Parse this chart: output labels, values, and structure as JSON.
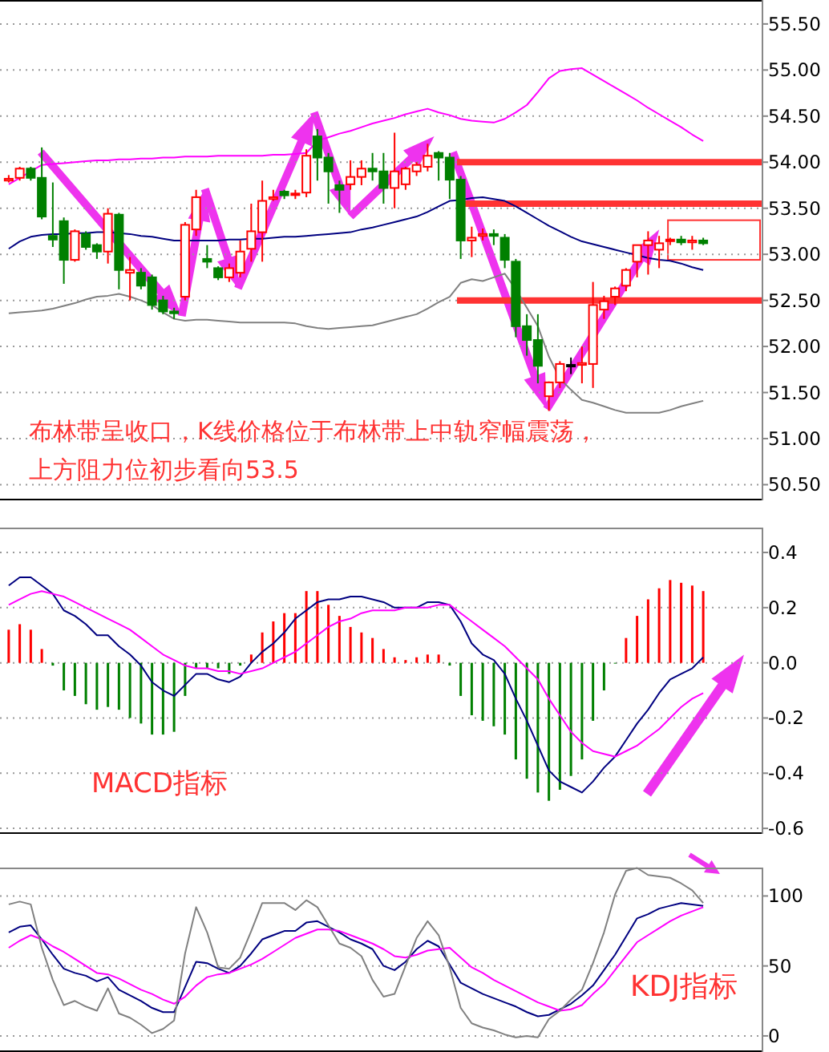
{
  "chart_data": [
    {
      "type": "candlestick",
      "categories": [
        null,
        null,
        null,
        null,
        null,
        null,
        null,
        null,
        null,
        null,
        null,
        null,
        null,
        null,
        null,
        null,
        null,
        null,
        null,
        null,
        null,
        null,
        null,
        null,
        null,
        null,
        null,
        null,
        null,
        null,
        null,
        null,
        null,
        null,
        null,
        null,
        null,
        null,
        null,
        null,
        null,
        null,
        null,
        null,
        null,
        null,
        null,
        null,
        null,
        null,
        null,
        null,
        null,
        null,
        null,
        null,
        null,
        null,
        null,
        null,
        null,
        null,
        null,
        null
      ],
      "ohlc": [
        [
          53.8,
          53.86,
          53.78,
          53.82
        ],
        [
          53.83,
          53.95,
          53.8,
          53.93
        ],
        [
          53.93,
          53.95,
          53.8,
          53.83
        ],
        [
          53.83,
          54.16,
          53.38,
          53.41
        ],
        [
          53.2,
          53.78,
          53.08,
          53.16
        ],
        [
          53.36,
          53.4,
          52.68,
          52.94
        ],
        [
          52.94,
          53.27,
          52.92,
          53.25
        ],
        [
          53.22,
          53.25,
          53.05,
          53.08
        ],
        [
          53.1,
          53.12,
          52.95,
          53.03
        ],
        [
          53.03,
          53.5,
          52.9,
          53.44
        ],
        [
          53.43,
          53.45,
          52.62,
          52.83
        ],
        [
          52.8,
          52.97,
          52.5,
          52.83
        ],
        [
          52.8,
          52.85,
          52.62,
          52.66
        ],
        [
          52.75,
          52.78,
          52.4,
          52.45
        ],
        [
          52.5,
          52.55,
          52.35,
          52.38
        ],
        [
          52.38,
          52.42,
          52.3,
          52.36
        ],
        [
          52.54,
          53.35,
          52.5,
          53.32
        ],
        [
          53.27,
          53.7,
          53.2,
          53.62
        ],
        [
          52.95,
          53.1,
          52.85,
          52.92
        ],
        [
          52.85,
          52.87,
          52.72,
          52.75
        ],
        [
          52.75,
          52.9,
          52.7,
          52.85
        ],
        [
          52.8,
          53.15,
          52.75,
          53.03
        ],
        [
          53.06,
          53.55,
          52.92,
          53.25
        ],
        [
          53.24,
          53.8,
          52.92,
          53.58
        ],
        [
          53.6,
          53.7,
          53.58,
          53.62
        ],
        [
          53.68,
          53.7,
          53.6,
          53.64
        ],
        [
          53.65,
          53.7,
          53.6,
          53.66
        ],
        [
          53.67,
          54.14,
          53.62,
          54.07
        ],
        [
          54.28,
          54.36,
          53.8,
          54.05
        ],
        [
          54.05,
          54.1,
          53.55,
          53.9
        ],
        [
          53.75,
          53.8,
          53.45,
          53.7
        ],
        [
          53.76,
          54.02,
          53.7,
          53.84
        ],
        [
          53.84,
          54.02,
          53.75,
          53.93
        ],
        [
          53.93,
          54.1,
          53.8,
          53.9
        ],
        [
          53.9,
          54.1,
          53.55,
          53.72
        ],
        [
          53.72,
          54.32,
          53.5,
          53.9
        ],
        [
          53.76,
          53.95,
          53.7,
          53.93
        ],
        [
          53.9,
          54.0,
          53.85,
          53.97
        ],
        [
          53.95,
          54.2,
          53.9,
          54.07
        ],
        [
          54.1,
          54.12,
          53.8,
          54.05
        ],
        [
          54.05,
          54.1,
          53.6,
          53.81
        ],
        [
          53.81,
          53.85,
          52.95,
          53.15
        ],
        [
          53.15,
          53.3,
          52.97,
          53.18
        ],
        [
          53.2,
          53.28,
          53.15,
          53.22
        ],
        [
          53.22,
          53.27,
          53.1,
          53.2
        ],
        [
          53.18,
          53.22,
          52.85,
          52.94
        ],
        [
          52.92,
          52.95,
          52.1,
          52.22
        ],
        [
          52.22,
          52.35,
          51.9,
          52.07
        ],
        [
          52.07,
          52.35,
          51.6,
          51.79
        ],
        [
          51.46,
          51.62,
          51.3,
          51.61
        ],
        [
          51.61,
          51.84,
          51.55,
          51.81
        ],
        [
          51.8,
          51.88,
          51.7,
          51.8
        ],
        [
          51.8,
          52.0,
          51.6,
          51.82
        ],
        [
          51.81,
          52.7,
          51.55,
          52.45
        ],
        [
          52.4,
          52.55,
          52.3,
          52.49
        ],
        [
          52.54,
          52.65,
          52.45,
          52.63
        ],
        [
          52.66,
          52.85,
          52.6,
          52.83
        ],
        [
          52.92,
          53.1,
          52.75,
          53.1
        ],
        [
          53.1,
          53.25,
          52.78,
          53.15
        ],
        [
          53.05,
          53.2,
          52.85,
          53.12
        ],
        [
          53.15,
          53.18,
          53.1,
          53.16
        ],
        [
          53.16,
          53.2,
          53.1,
          53.13
        ],
        [
          53.13,
          53.2,
          53.05,
          53.15
        ],
        [
          53.15,
          53.18,
          53.1,
          53.12
        ]
      ],
      "series": [
        {
          "type": "line",
          "color": "#ff00ff",
          "values": [
            53.76,
            53.83,
            53.9,
            53.97,
            53.98,
            53.99,
            54.0,
            54.01,
            54.02,
            54.02,
            54.03,
            54.03,
            54.04,
            54.04,
            54.05,
            54.05,
            54.06,
            54.06,
            54.06,
            54.07,
            54.07,
            54.07,
            54.07,
            54.07,
            54.08,
            54.08,
            54.09,
            54.1,
            54.23,
            54.27,
            54.31,
            54.34,
            54.38,
            54.42,
            54.45,
            54.48,
            54.52,
            54.55,
            54.58,
            54.54,
            54.51,
            54.47,
            54.45,
            54.44,
            54.43,
            54.47,
            54.54,
            54.62,
            54.76,
            54.91,
            54.99,
            55.01,
            55.02,
            54.95,
            54.88,
            54.81,
            54.74,
            54.67,
            54.59,
            54.52,
            54.45,
            54.38,
            54.3,
            54.23
          ]
        },
        {
          "type": "line",
          "color": "#000080",
          "values": [
            53.06,
            53.14,
            53.19,
            53.21,
            53.22,
            53.22,
            53.23,
            53.23,
            53.24,
            53.24,
            53.23,
            53.22,
            53.2,
            53.19,
            53.17,
            53.15,
            53.15,
            53.15,
            53.15,
            53.15,
            53.16,
            53.16,
            53.17,
            53.17,
            53.18,
            53.19,
            53.19,
            53.2,
            53.21,
            53.22,
            53.23,
            53.24,
            53.27,
            53.29,
            53.32,
            53.35,
            53.38,
            53.41,
            53.46,
            53.52,
            53.58,
            53.59,
            53.61,
            53.62,
            53.6,
            53.58,
            53.52,
            53.45,
            53.38,
            53.31,
            53.25,
            53.19,
            53.14,
            53.11,
            53.08,
            53.05,
            53.02,
            52.99,
            52.96,
            52.94,
            52.93,
            52.9,
            52.86,
            52.83
          ]
        },
        {
          "type": "line",
          "color": "#808080",
          "values": [
            52.36,
            52.37,
            52.38,
            52.39,
            52.41,
            52.44,
            52.47,
            52.51,
            52.54,
            52.55,
            52.57,
            52.54,
            52.5,
            52.45,
            52.37,
            52.3,
            52.28,
            52.29,
            52.29,
            52.28,
            52.27,
            52.26,
            52.26,
            52.26,
            52.26,
            52.26,
            52.25,
            52.22,
            52.2,
            52.19,
            52.2,
            52.21,
            52.22,
            52.23,
            52.26,
            52.29,
            52.32,
            52.35,
            52.41,
            52.48,
            52.54,
            52.69,
            52.73,
            52.71,
            52.75,
            52.79,
            52.62,
            52.42,
            52.22,
            51.89,
            51.65,
            51.53,
            51.42,
            51.39,
            51.35,
            51.31,
            51.28,
            51.28,
            51.28,
            51.28,
            51.31,
            51.35,
            51.38,
            51.41
          ]
        }
      ],
      "ylim": [
        50.33,
        55.76
      ],
      "yticks": [
        {
          "value": 50.5,
          "label": "50.50"
        },
        {
          "value": 51,
          "label": "51.00"
        },
        {
          "value": 51.5,
          "label": "51.50"
        },
        {
          "value": 52,
          "label": "52.00"
        },
        {
          "value": 52.5,
          "label": "52.50"
        },
        {
          "value": 53,
          "label": "53.00"
        },
        {
          "value": 53.5,
          "label": "53.50"
        },
        {
          "value": 54,
          "label": "54.00"
        },
        {
          "value": 54.5,
          "label": "54.50"
        },
        {
          "value": 55,
          "label": "55.00"
        },
        {
          "value": 55.5,
          "label": "55.50"
        }
      ],
      "grid": "y",
      "ref_lines": [
        {
          "axis": "y",
          "value": 54.0,
          "color": "#ff3333"
        },
        {
          "axis": "y",
          "value": 53.55,
          "color": "#ff3333"
        },
        {
          "axis": "y",
          "value": 52.5,
          "color": "#ff3333"
        }
      ],
      "annotations": [
        "布林带呈收口，K线价格位于布林带上中轨窄幅震荡，",
        "上方阻力位初步看向53.5"
      ]
    },
    {
      "type": "bar",
      "categories": [
        null,
        null,
        null,
        null,
        null,
        null,
        null,
        null,
        null,
        null,
        null,
        null,
        null,
        null,
        null,
        null,
        null,
        null,
        null,
        null,
        null,
        null,
        null,
        null,
        null,
        null,
        null,
        null,
        null,
        null,
        null,
        null,
        null,
        null,
        null,
        null,
        null,
        null,
        null,
        null,
        null,
        null,
        null,
        null,
        null,
        null,
        null,
        null,
        null,
        null,
        null,
        null,
        null,
        null,
        null,
        null,
        null,
        null,
        null,
        null,
        null,
        null,
        null,
        null
      ],
      "series": [
        {
          "type": "bar",
          "values": [
            0.12,
            0.14,
            0.12,
            0.05,
            -0.01,
            -0.1,
            -0.12,
            -0.15,
            -0.17,
            -0.16,
            -0.17,
            -0.2,
            -0.22,
            -0.26,
            -0.26,
            -0.25,
            -0.12,
            -0.02,
            -0.02,
            -0.02,
            -0.04,
            -0.01,
            0.03,
            0.11,
            0.15,
            0.18,
            0.18,
            0.26,
            0.26,
            0.21,
            0.17,
            0.13,
            0.11,
            0.09,
            0.05,
            0.02,
            0.01,
            0.02,
            0.03,
            0.03,
            -0.01,
            -0.12,
            -0.19,
            -0.21,
            -0.23,
            -0.26,
            -0.35,
            -0.42,
            -0.47,
            -0.5,
            -0.46,
            -0.41,
            -0.35,
            -0.21,
            -0.1,
            0.0,
            0.09,
            0.17,
            0.23,
            0.27,
            0.3,
            0.29,
            0.28,
            0.26
          ],
          "colors": [
            "#ff0000",
            "#ff0000",
            "#ff0000",
            "#ff0000",
            "#008000",
            "#008000",
            "#008000",
            "#008000",
            "#008000",
            "#008000",
            "#008000",
            "#008000",
            "#008000",
            "#008000",
            "#008000",
            "#008000",
            "#008000",
            "#008000",
            "#008000",
            "#008000",
            "#008000",
            "#008000",
            "#ff0000",
            "#ff0000",
            "#ff0000",
            "#ff0000",
            "#ff0000",
            "#ff0000",
            "#ff0000",
            "#ff0000",
            "#ff0000",
            "#ff0000",
            "#ff0000",
            "#ff0000",
            "#ff0000",
            "#ff0000",
            "#ff0000",
            "#ff0000",
            "#ff0000",
            "#ff0000",
            "#008000",
            "#008000",
            "#008000",
            "#008000",
            "#008000",
            "#008000",
            "#008000",
            "#008000",
            "#008000",
            "#008000",
            "#008000",
            "#008000",
            "#008000",
            "#008000",
            "#008000",
            "#008000",
            "#ff0000",
            "#ff0000",
            "#ff0000",
            "#ff0000",
            "#ff0000",
            "#ff0000",
            "#ff0000",
            "#ff0000"
          ]
        },
        {
          "type": "line",
          "color": "#000080",
          "values": [
            0.28,
            0.31,
            0.31,
            0.28,
            0.25,
            0.19,
            0.17,
            0.14,
            0.1,
            0.1,
            0.06,
            0.03,
            -0.01,
            -0.07,
            -0.1,
            -0.12,
            -0.08,
            -0.04,
            -0.04,
            -0.06,
            -0.07,
            -0.05,
            0.0,
            0.04,
            0.07,
            0.11,
            0.16,
            0.19,
            0.22,
            0.23,
            0.23,
            0.24,
            0.24,
            0.23,
            0.22,
            0.2,
            0.2,
            0.2,
            0.22,
            0.22,
            0.21,
            0.15,
            0.07,
            0.03,
            0.01,
            -0.04,
            -0.13,
            -0.21,
            -0.3,
            -0.39,
            -0.43,
            -0.45,
            -0.47,
            -0.43,
            -0.38,
            -0.34,
            -0.28,
            -0.22,
            -0.17,
            -0.11,
            -0.06,
            -0.04,
            -0.02,
            0.02
          ]
        },
        {
          "type": "line",
          "color": "#ff00ff",
          "values": [
            0.21,
            0.23,
            0.25,
            0.26,
            0.25,
            0.24,
            0.22,
            0.2,
            0.18,
            0.16,
            0.14,
            0.12,
            0.09,
            0.06,
            0.03,
            0.01,
            -0.01,
            -0.02,
            -0.02,
            -0.03,
            -0.03,
            -0.04,
            -0.03,
            -0.02,
            0.0,
            0.02,
            0.04,
            0.07,
            0.1,
            0.13,
            0.15,
            0.16,
            0.18,
            0.19,
            0.19,
            0.19,
            0.2,
            0.2,
            0.2,
            0.21,
            0.21,
            0.18,
            0.15,
            0.12,
            0.09,
            0.06,
            0.02,
            -0.02,
            -0.06,
            -0.13,
            -0.19,
            -0.25,
            -0.29,
            -0.32,
            -0.33,
            -0.34,
            -0.32,
            -0.3,
            -0.27,
            -0.24,
            -0.2,
            -0.16,
            -0.13,
            -0.11
          ]
        }
      ],
      "ylim": [
        -0.62,
        0.49
      ],
      "yticks": [
        -0.6,
        -0.4,
        -0.2,
        {
          "value": 0,
          "label": "0.0"
        },
        0.2,
        0.4
      ],
      "grid": "y",
      "annotations": [
        "MACD指标"
      ]
    },
    {
      "type": "line",
      "categories": [
        null,
        null,
        null,
        null,
        null,
        null,
        null,
        null,
        null,
        null,
        null,
        null,
        null,
        null,
        null,
        null,
        null,
        null,
        null,
        null,
        null,
        null,
        null,
        null,
        null,
        null,
        null,
        null,
        null,
        null,
        null,
        null,
        null,
        null,
        null,
        null,
        null,
        null,
        null,
        null,
        null,
        null,
        null,
        null,
        null,
        null,
        null,
        null,
        null,
        null,
        null,
        null,
        null,
        null,
        null,
        null,
        null,
        null,
        null,
        null,
        null,
        null,
        null,
        null
      ],
      "series": [
        {
          "color": "#000080",
          "values": [
            74,
            78,
            79,
            69,
            58,
            48,
            45,
            43,
            39,
            42,
            33,
            29,
            25,
            20,
            17,
            17,
            35,
            53,
            52,
            48,
            45,
            50,
            59,
            69,
            72,
            75,
            75,
            81,
            82,
            78,
            74,
            69,
            66,
            62,
            50,
            47,
            53,
            62,
            68,
            64,
            51,
            38,
            34,
            30,
            27,
            24,
            21,
            17,
            14,
            15,
            19,
            23,
            29,
            36,
            47,
            58,
            71,
            84,
            87,
            91,
            93,
            95,
            94,
            93
          ]
        },
        {
          "color": "#ff00ff",
          "values": [
            63,
            68,
            72,
            69,
            64,
            60,
            55,
            50,
            45,
            44,
            41,
            37,
            33,
            30,
            26,
            23,
            28,
            36,
            42,
            44,
            45,
            48,
            51,
            55,
            60,
            65,
            70,
            73,
            76,
            76,
            75,
            72,
            69,
            66,
            62,
            57,
            56,
            58,
            61,
            62,
            63,
            56,
            49,
            45,
            40,
            36,
            32,
            28,
            24,
            21,
            18,
            19,
            22,
            30,
            37,
            47,
            57,
            67,
            72,
            77,
            82,
            86,
            89,
            92
          ]
        },
        {
          "color": "#808080",
          "values": [
            94,
            96,
            94,
            63,
            40,
            22,
            25,
            21,
            18,
            34,
            16,
            13,
            8,
            2,
            5,
            11,
            59,
            92,
            74,
            49,
            48,
            56,
            75,
            95,
            95,
            95,
            90,
            97,
            92,
            79,
            66,
            63,
            57,
            40,
            28,
            30,
            50,
            70,
            82,
            72,
            49,
            20,
            9,
            6,
            4,
            1,
            -1,
            0,
            -1,
            12,
            18,
            26,
            33,
            52,
            74,
            101,
            118,
            120,
            115,
            114,
            113,
            109,
            104,
            95
          ]
        }
      ],
      "ylim": [
        -11.5,
        120.3
      ],
      "yticks": [
        0,
        50,
        100
      ],
      "grid": "y",
      "annotations": [
        "KDJ指标"
      ]
    }
  ]
}
